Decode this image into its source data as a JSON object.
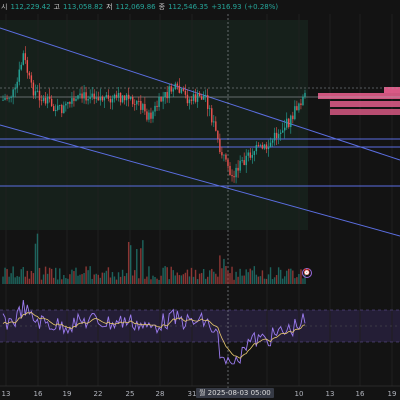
{
  "ohlc": {
    "open_label": "시",
    "open": "112,229.42",
    "high_label": "고",
    "high": "113,058.82",
    "low_label": "저",
    "low": "112,069.86",
    "close_label": "종",
    "close": "112,546.35",
    "change": "+316.93",
    "change_pct": "(+0.28%)"
  },
  "x_axis": {
    "ticks": [
      "13",
      "16",
      "19",
      "22",
      "25",
      "28",
      "31",
      "7",
      "10",
      "13",
      "16",
      "19"
    ],
    "crosshair_label": "월 2025-08-03  05:00"
  },
  "colors": {
    "background": "#131313",
    "up": "#26a69a",
    "down": "#ef5350",
    "channel": "#5b6ee1",
    "rsi_band": "#2a2340",
    "supply_zone": "#f06292"
  },
  "icons": {
    "alert": "alarm-clock-icon"
  },
  "alert_glyph": "⏰",
  "chart_data": {
    "type": "candlestick",
    "annotations": [
      "descending channel",
      "horizontal support lines",
      "supply zone boxes",
      "RSI with moving average",
      "volume histogram"
    ]
  }
}
